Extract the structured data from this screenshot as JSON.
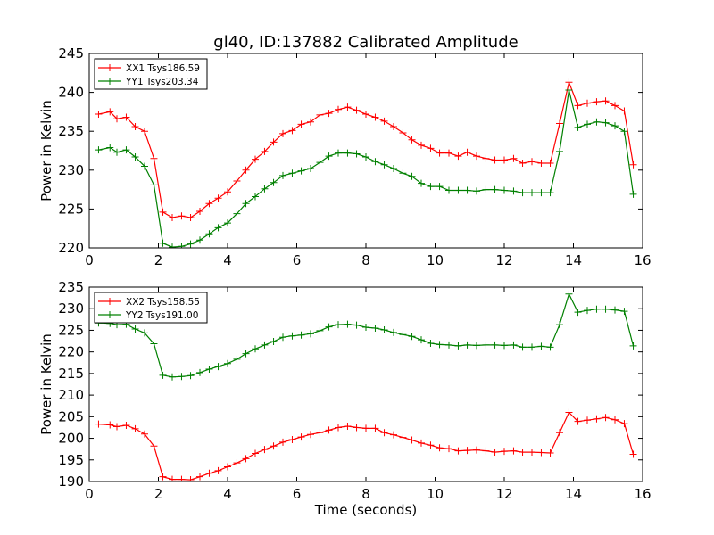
{
  "figure": {
    "title": "gl40, ID:137882 Calibrated Amplitude"
  },
  "chart_data": [
    {
      "type": "line",
      "title": "gl40, ID:137882 Calibrated Amplitude",
      "xlabel": "",
      "ylabel": "Power in Kelvin",
      "xlim": [
        0,
        16
      ],
      "ylim": [
        220,
        245
      ],
      "xticks": [
        0,
        2,
        4,
        6,
        8,
        10,
        12,
        14,
        16
      ],
      "yticks": [
        220,
        225,
        230,
        235,
        240,
        245
      ],
      "grid": false,
      "legend": "top-left",
      "x": [
        0.27,
        0.6,
        0.8,
        1.07,
        1.33,
        1.6,
        1.87,
        2.13,
        2.4,
        2.67,
        2.93,
        3.2,
        3.47,
        3.73,
        4.0,
        4.27,
        4.53,
        4.8,
        5.07,
        5.33,
        5.6,
        5.87,
        6.13,
        6.4,
        6.67,
        6.93,
        7.2,
        7.47,
        7.73,
        8.0,
        8.27,
        8.53,
        8.8,
        9.07,
        9.33,
        9.6,
        9.87,
        10.13,
        10.4,
        10.67,
        10.93,
        11.2,
        11.47,
        11.73,
        12.0,
        12.27,
        12.53,
        12.8,
        13.07,
        13.33,
        13.6,
        13.87,
        14.13,
        14.4,
        14.67,
        14.93,
        15.2,
        15.47,
        15.73
      ],
      "series": [
        {
          "name": "XX1 Tsys186.59",
          "color": "#ff0000",
          "values": [
            237.2,
            237.5,
            236.6,
            236.8,
            235.6,
            235.0,
            231.5,
            224.6,
            223.9,
            224.1,
            223.9,
            224.7,
            225.7,
            226.4,
            227.2,
            228.6,
            230.0,
            231.4,
            232.4,
            233.6,
            234.7,
            235.1,
            235.9,
            236.2,
            237.1,
            237.3,
            237.8,
            238.1,
            237.7,
            237.2,
            236.8,
            236.3,
            235.6,
            234.8,
            233.9,
            233.2,
            232.8,
            232.2,
            232.2,
            231.8,
            232.3,
            231.8,
            231.5,
            231.3,
            231.3,
            231.5,
            230.9,
            231.1,
            230.9,
            230.9,
            236.0,
            241.3,
            238.3,
            238.6,
            238.8,
            238.9,
            238.3,
            237.6,
            230.7
          ]
        },
        {
          "name": "YY1 Tsys203.34",
          "color": "#008000",
          "values": [
            232.6,
            232.9,
            232.3,
            232.6,
            231.7,
            230.5,
            228.1,
            220.6,
            220.1,
            220.2,
            220.5,
            221.0,
            221.8,
            222.6,
            223.2,
            224.4,
            225.7,
            226.6,
            227.6,
            228.4,
            229.3,
            229.6,
            229.9,
            230.2,
            231.0,
            231.8,
            232.2,
            232.2,
            232.1,
            231.7,
            231.1,
            230.7,
            230.2,
            229.6,
            229.2,
            228.3,
            227.9,
            227.9,
            227.4,
            227.4,
            227.4,
            227.3,
            227.5,
            227.5,
            227.4,
            227.3,
            227.1,
            227.1,
            227.1,
            227.1,
            232.4,
            240.3,
            235.5,
            235.9,
            236.2,
            236.1,
            235.7,
            235.0,
            226.9
          ]
        }
      ]
    },
    {
      "type": "line",
      "title": "",
      "xlabel": "Time (seconds)",
      "ylabel": "Power in Kelvin",
      "xlim": [
        0,
        16
      ],
      "ylim": [
        190,
        235
      ],
      "xticks": [
        0,
        2,
        4,
        6,
        8,
        10,
        12,
        14,
        16
      ],
      "yticks": [
        190,
        195,
        200,
        205,
        210,
        215,
        220,
        225,
        230,
        235
      ],
      "grid": false,
      "legend": "top-left",
      "x": [
        0.27,
        0.6,
        0.8,
        1.07,
        1.33,
        1.6,
        1.87,
        2.13,
        2.4,
        2.67,
        2.93,
        3.2,
        3.47,
        3.73,
        4.0,
        4.27,
        4.53,
        4.8,
        5.07,
        5.33,
        5.6,
        5.87,
        6.13,
        6.4,
        6.67,
        6.93,
        7.2,
        7.47,
        7.73,
        8.0,
        8.27,
        8.53,
        8.8,
        9.07,
        9.33,
        9.6,
        9.87,
        10.13,
        10.4,
        10.67,
        10.93,
        11.2,
        11.47,
        11.73,
        12.0,
        12.27,
        12.53,
        12.8,
        13.07,
        13.33,
        13.6,
        13.87,
        14.13,
        14.4,
        14.67,
        14.93,
        15.2,
        15.47,
        15.73
      ],
      "series": [
        {
          "name": "XX2 Tsys158.55",
          "color": "#ff0000",
          "values": [
            203.3,
            203.1,
            202.7,
            203.0,
            202.2,
            201.0,
            198.2,
            191.1,
            190.5,
            190.5,
            190.4,
            191.1,
            191.9,
            192.5,
            193.4,
            194.3,
            195.3,
            196.5,
            197.4,
            198.2,
            199.1,
            199.7,
            200.3,
            200.9,
            201.3,
            201.9,
            202.5,
            202.8,
            202.5,
            202.3,
            202.3,
            201.3,
            200.8,
            200.2,
            199.6,
            198.9,
            198.4,
            197.8,
            197.6,
            197.1,
            197.2,
            197.3,
            197.1,
            196.8,
            197.0,
            197.1,
            196.8,
            196.8,
            196.7,
            196.6,
            201.3,
            206.0,
            203.9,
            204.2,
            204.5,
            204.8,
            204.3,
            203.4,
            196.3
          ]
        },
        {
          "name": "YY2 Tsys191.00",
          "color": "#008000",
          "values": [
            226.7,
            226.6,
            226.3,
            226.4,
            225.3,
            224.4,
            221.9,
            214.6,
            214.2,
            214.3,
            214.5,
            215.2,
            216.0,
            216.6,
            217.3,
            218.3,
            219.6,
            220.7,
            221.6,
            222.4,
            223.4,
            223.7,
            223.9,
            224.2,
            224.9,
            225.8,
            226.3,
            226.4,
            226.2,
            225.7,
            225.5,
            225.1,
            224.5,
            224.0,
            223.6,
            222.8,
            222.0,
            221.7,
            221.6,
            221.4,
            221.6,
            221.5,
            221.6,
            221.6,
            221.5,
            221.6,
            221.1,
            221.1,
            221.3,
            221.1,
            226.3,
            233.4,
            229.2,
            229.6,
            229.9,
            229.9,
            229.7,
            229.4,
            221.4
          ]
        }
      ]
    }
  ]
}
